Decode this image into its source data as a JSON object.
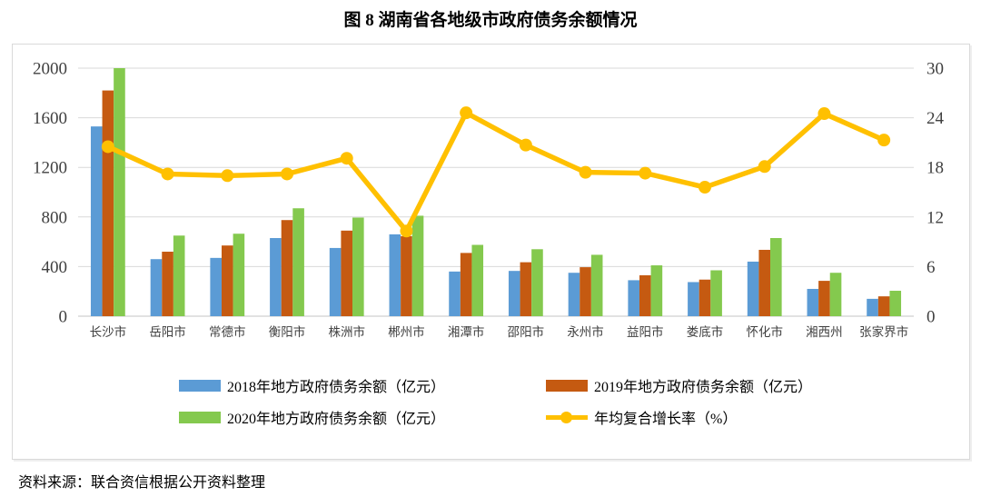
{
  "title": "图 8  湖南省各地级市政府债务余额情况",
  "source": "资料来源：联合资信根据公开资料整理",
  "chart_data": {
    "type": "combo (bar + line)",
    "categories": [
      "长沙市",
      "岳阳市",
      "常德市",
      "衡阳市",
      "株洲市",
      "郴州市",
      "湘潭市",
      "邵阳市",
      "永州市",
      "益阳市",
      "娄底市",
      "怀化市",
      "湘西州",
      "张家界市"
    ],
    "series": [
      {
        "name": "2018年地方政府债务余额（亿元）",
        "type": "bar",
        "axis": "left",
        "color": "#5B9BD5",
        "values": [
          1530,
          460,
          470,
          630,
          550,
          660,
          360,
          365,
          350,
          290,
          275,
          440,
          220,
          140
        ]
      },
      {
        "name": "2019年地方政府债务余额（亿元）",
        "type": "bar",
        "axis": "left",
        "color": "#C55A11",
        "values": [
          1820,
          520,
          570,
          775,
          690,
          645,
          510,
          435,
          395,
          330,
          295,
          535,
          285,
          160
        ]
      },
      {
        "name": "2020年地方政府债务余额（亿元）",
        "type": "bar",
        "axis": "left",
        "color": "#84C94E",
        "values": [
          2000,
          650,
          665,
          870,
          795,
          810,
          575,
          540,
          495,
          410,
          370,
          630,
          350,
          205
        ]
      },
      {
        "name": "年均复合增长率（%）",
        "type": "line",
        "axis": "right",
        "color": "#FFC000",
        "values": [
          20.5,
          17.2,
          17.0,
          17.2,
          19.1,
          10.3,
          24.6,
          20.7,
          17.4,
          17.3,
          15.6,
          18.1,
          24.5,
          21.3
        ]
      }
    ],
    "left_axis": {
      "min": 0,
      "max": 2000,
      "ticks": [
        0,
        400,
        800,
        1200,
        1600,
        2000
      ]
    },
    "right_axis": {
      "min": 0,
      "max": 30,
      "ticks": [
        0,
        6,
        12,
        18,
        24,
        30
      ]
    },
    "grid": true,
    "legend_position": "bottom",
    "xlabel": "",
    "ylabel_left": "",
    "ylabel_right": "",
    "colors": {
      "grid": "#D9D9D9",
      "axis_text": "#404040",
      "panel_border": "#D9D9D9"
    }
  }
}
